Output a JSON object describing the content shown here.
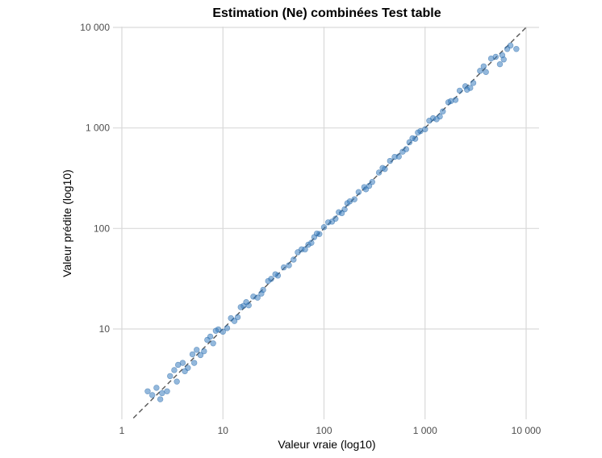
{
  "chart_data": {
    "type": "scatter",
    "title": "Estimation (Ne) combinées Test table",
    "xlabel": "Valeur vraie (log10)",
    "ylabel": "Valeur prédite (log10)",
    "x_scale": "log",
    "y_scale": "log",
    "xlim": [
      0.9,
      11000
    ],
    "ylim": [
      1.4,
      10000
    ],
    "x_ticks": [
      1,
      10,
      100,
      1000,
      10000
    ],
    "x_tick_labels": [
      "1",
      "10",
      "100",
      "1 000",
      "10 000"
    ],
    "y_ticks": [
      10,
      100,
      1000,
      10000
    ],
    "y_tick_labels": [
      "10",
      "100",
      "1 000",
      "10 000"
    ],
    "grid": true,
    "reference_line": "y = x",
    "series": [
      {
        "color": "#3a7dbf",
        "x": [
          2.0,
          2.5,
          3.0,
          3.5,
          4.0,
          4.5,
          5.0,
          6.0,
          7.0,
          8.0,
          9.0,
          10,
          12,
          14,
          16,
          18,
          20,
          25,
          30,
          35,
          40,
          50,
          60,
          70,
          80,
          90,
          100,
          120,
          140,
          160,
          180,
          200,
          250,
          300,
          350,
          400,
          500,
          600,
          700,
          800,
          900,
          1000,
          1200,
          1500,
          1800,
          2000,
          2500,
          3000,
          3500,
          4000,
          5000,
          6000,
          7000,
          8000,
          2.2,
          2.8,
          3.3,
          4.2,
          5.5,
          6.5,
          8.5,
          11,
          15,
          22,
          28,
          45,
          55,
          75,
          110,
          150,
          220,
          280,
          450,
          550,
          750,
          1100,
          1400,
          2200,
          2800,
          4500,
          5500,
          6500,
          1.8,
          2.4,
          3.6,
          5.2,
          7.5,
          13,
          17,
          24,
          33,
          65,
          85,
          130,
          170,
          260,
          380,
          650,
          850,
          1300,
          1700,
          2600,
          3800,
          5800
        ],
        "y": [
          2.2,
          2.3,
          3.4,
          3.0,
          4.6,
          4.1,
          5.6,
          5.5,
          7.8,
          7.2,
          9.9,
          9.4,
          12.8,
          13.1,
          17.0,
          17.2,
          21.0,
          24.5,
          31.5,
          34.0,
          41.0,
          49.0,
          62.0,
          69.0,
          82.0,
          88.0,
          103,
          117,
          145,
          155,
          186,
          195,
          258,
          290,
          360,
          390,
          515,
          580,
          720,
          780,
          930,
          970,
          1250,
          1460,
          1850,
          1900,
          2600,
          2800,
          3700,
          3600,
          5100,
          4800,
          6600,
          6100,
          2.6,
          2.4,
          3.9,
          3.8,
          6.2,
          6.0,
          9.6,
          10.2,
          16.5,
          20.5,
          30.0,
          43.0,
          58.0,
          72.0,
          115,
          142,
          230,
          265,
          470,
          520,
          790,
          1180,
          1300,
          2350,
          2500,
          4900,
          4300,
          6100,
          2.4,
          2.0,
          4.4,
          4.6,
          8.4,
          12.0,
          18.5,
          22.5,
          35.0,
          62.0,
          89.0,
          125,
          178,
          245,
          400,
          615,
          900,
          1220,
          1800,
          2400,
          4100,
          5300
        ]
      }
    ]
  }
}
